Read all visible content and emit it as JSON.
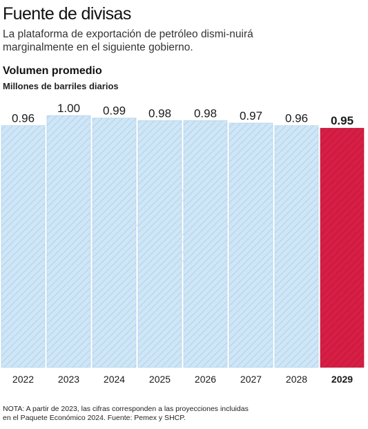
{
  "header": {
    "title": "Fuente de divisas",
    "subtitle": "La plataforma de exportación de petróleo dismi-nuirá marginalmente en el siguiente gobierno."
  },
  "chart_data": {
    "type": "bar",
    "title": "Volumen promedio",
    "ylabel": "Millones de barriles diarios",
    "categories": [
      "2022",
      "2023",
      "2024",
      "2025",
      "2026",
      "2027",
      "2028",
      "2029"
    ],
    "values": [
      0.96,
      1.0,
      0.99,
      0.98,
      0.98,
      0.97,
      0.96,
      0.95
    ],
    "value_labels": [
      "0.96",
      "1.00",
      "0.99",
      "0.98",
      "0.98",
      "0.97",
      "0.96",
      "0.95"
    ],
    "highlight": "2029",
    "colors": {
      "bar": "#cfe6f7",
      "bar_hatch": "#a9cbe6",
      "highlight": "#d81e45",
      "highlight_hatch": "#b3173a"
    },
    "grid": false,
    "legend": "none"
  },
  "footer": {
    "note": "NOTA: A partir de 2023, las cifras corresponden a las proyecciones incluidas en el Paquete Económico 2024. Fuente: Pemex y SHCP."
  }
}
